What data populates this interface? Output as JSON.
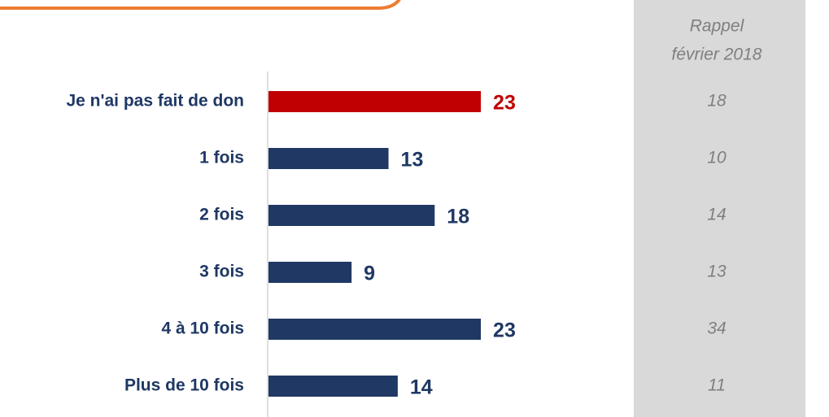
{
  "chart_data": {
    "type": "barh",
    "categories": [
      "Je n'ai pas fait de don",
      "1 fois",
      "2 fois",
      "3 fois",
      "4 à 10 fois",
      "Plus de 10 fois"
    ],
    "values": [
      23,
      13,
      18,
      9,
      23,
      14
    ],
    "colors": [
      "#c00000",
      "#1f3864",
      "#1f3864",
      "#1f3864",
      "#1f3864",
      "#1f3864"
    ],
    "recall": {
      "title": [
        "Rappel",
        "février 2018"
      ],
      "values": [
        18,
        10,
        14,
        13,
        34,
        11
      ]
    }
  }
}
